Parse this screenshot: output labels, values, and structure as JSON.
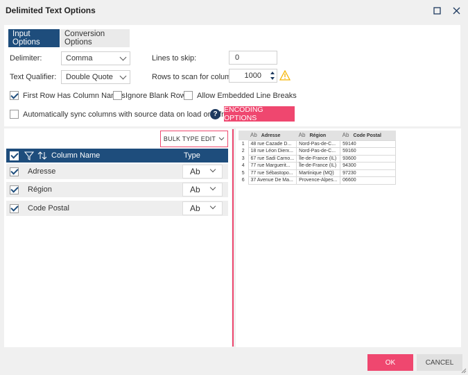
{
  "window": {
    "title": "Delimited Text Options"
  },
  "tabs": [
    {
      "label": "Input Options",
      "active": true
    },
    {
      "label": "Conversion Options",
      "active": false
    }
  ],
  "options": {
    "delimiter_label": "Delimiter:",
    "delimiter_value": "Comma",
    "qualifier_label": "Text Qualifier:",
    "qualifier_value": "Double Quote",
    "lines_skip_label": "Lines to skip:",
    "lines_skip_value": "0",
    "rows_scan_label": "Rows to scan for columns:",
    "rows_scan_value": "1000",
    "first_row_label": "First Row Has Column Names",
    "first_row_checked": true,
    "ignore_blank_label": "Ignore Blank Rows",
    "ignore_blank_checked": false,
    "allow_breaks_label": "Allow Embedded Line Breaks",
    "allow_breaks_checked": false,
    "auto_sync_label": "Automatically sync columns with source data on load or refresh",
    "auto_sync_checked": false,
    "encoding_label": "ENCODING OPTIONS"
  },
  "columns": {
    "bulk_label": "BULK TYPE EDIT",
    "header_name": "Column Name",
    "header_type": "Type",
    "rows": [
      {
        "name": "Adresse",
        "type": "Ab",
        "checked": true
      },
      {
        "name": "Région",
        "type": "Ab",
        "checked": true
      },
      {
        "name": "Code Postal",
        "type": "Ab",
        "checked": true
      }
    ]
  },
  "preview": {
    "type_glyph": "Ab",
    "headers": [
      "Adresse",
      "Région",
      "Code Postal"
    ],
    "rows": [
      [
        "1",
        "48 rue Cazade D...",
        "Nord-Pas-de-C...",
        "59140"
      ],
      [
        "2",
        "18 rue Léon Dierx...",
        "Nord-Pas-de-C...",
        "59160"
      ],
      [
        "3",
        "67 rue Sadi Carno...",
        "Île-de-France (IL)",
        "93600"
      ],
      [
        "4",
        "77 rue Marguerit...",
        "Île-de-France (IL)",
        "94300"
      ],
      [
        "5",
        "77 rue Sébastopo...",
        "Martinique (MQ)",
        "97230"
      ],
      [
        "6",
        "37 Avenue De Ma...",
        "Provence-Alpes...",
        "06600"
      ]
    ]
  },
  "footer": {
    "ok_label": "OK",
    "cancel_label": "CANCEL"
  },
  "colors": {
    "accent": "#ef476f",
    "navy": "#1e4d7c",
    "warning": "#f5b400"
  }
}
